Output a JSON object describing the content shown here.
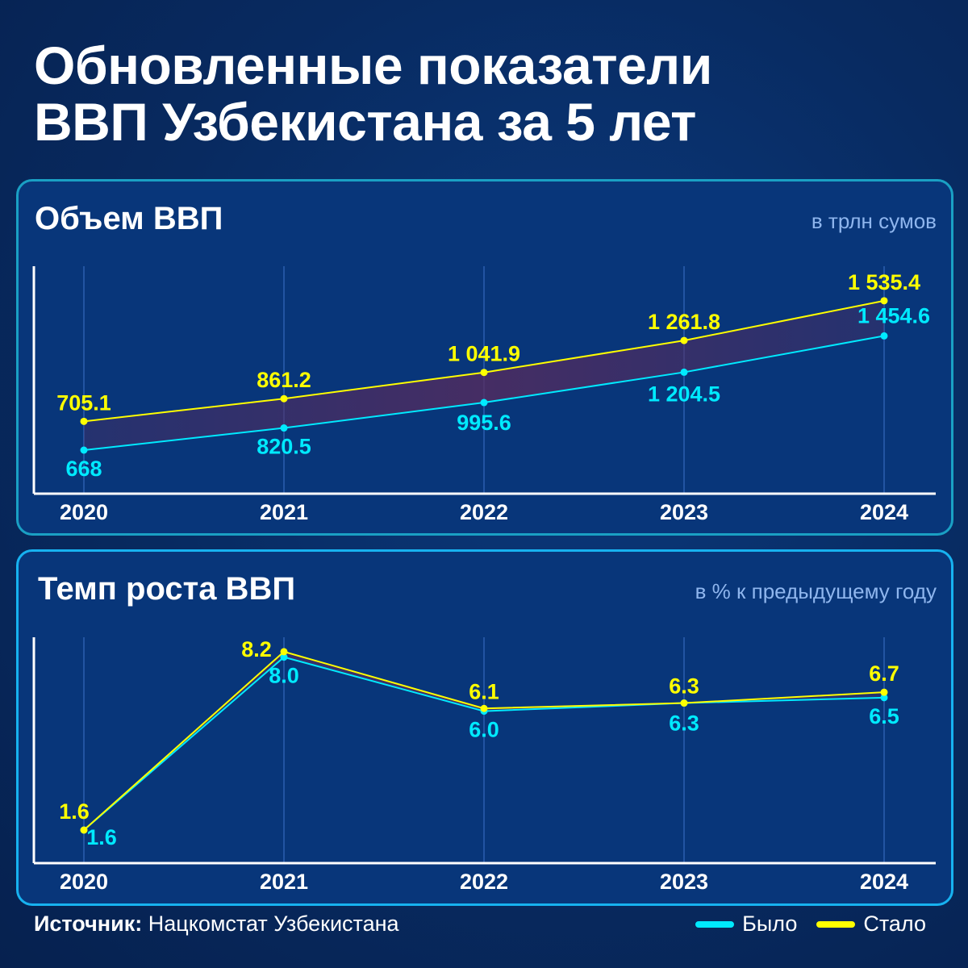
{
  "title_line1": "Обновленные показатели",
  "title_line2": "ВВП Узбекистана за 5 лет",
  "footer": {
    "source_label": "Источник",
    "source_value": "Нацкомстат Узбекистана"
  },
  "legend": [
    {
      "label": "Было",
      "color": "#00eaff"
    },
    {
      "label": "Стало",
      "color": "#ffff00"
    }
  ],
  "chart_data": [
    {
      "type": "line",
      "title": "Объем ВВП",
      "unit": "в трлн сумов",
      "categories": [
        "2020",
        "2021",
        "2022",
        "2023",
        "2024"
      ],
      "series": [
        {
          "name": "Было",
          "color": "#00eaff",
          "values": [
            668,
            820.5,
            995.6,
            1204.5,
            1454.6
          ],
          "labels": [
            "668",
            "820.5",
            "995.6",
            "1 204.5",
            "1 454.6"
          ]
        },
        {
          "name": "Стало",
          "color": "#ffff00",
          "values": [
            705.1,
            861.2,
            1041.9,
            1261.8,
            1535.4
          ],
          "labels": [
            "705.1",
            "861.2",
            "1 041.9",
            "1 261.8",
            "1 535.4"
          ]
        }
      ],
      "grid": "vertical"
    },
    {
      "type": "line",
      "title": "Темп роста ВВП",
      "unit": "в % к предыдущему году",
      "categories": [
        "2020",
        "2021",
        "2022",
        "2023",
        "2024"
      ],
      "series": [
        {
          "name": "Было",
          "color": "#00eaff",
          "values": [
            1.6,
            8.0,
            6.0,
            6.3,
            6.5
          ],
          "labels": [
            "1.6",
            "8.0",
            "6.0",
            "6.3",
            "6.5"
          ]
        },
        {
          "name": "Стало",
          "color": "#ffff00",
          "values": [
            1.6,
            8.2,
            6.1,
            6.3,
            6.7
          ],
          "labels": [
            "1.6",
            "8.2",
            "6.1",
            "6.3",
            "6.7"
          ]
        }
      ],
      "grid": "vertical"
    }
  ]
}
